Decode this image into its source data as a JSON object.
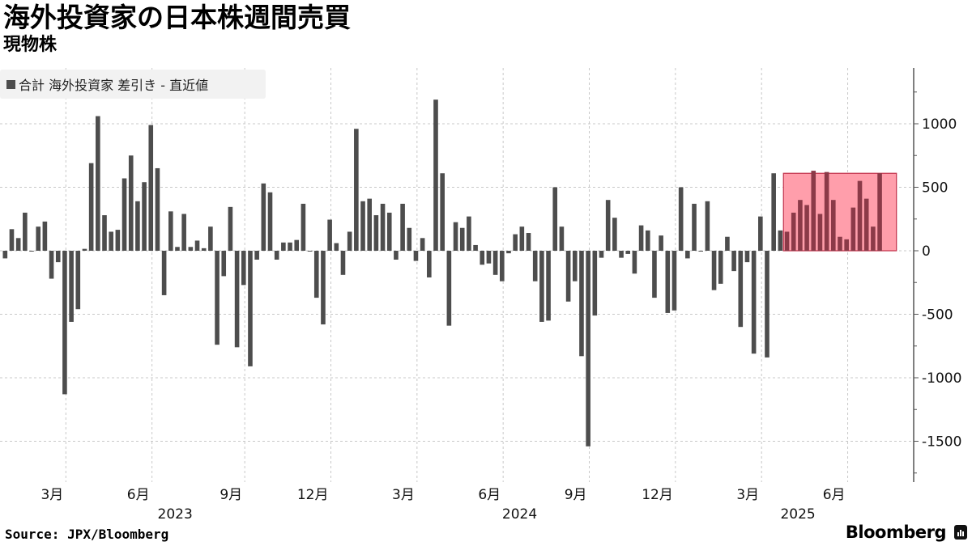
{
  "header": {
    "title": "海外投資家の日本株週間売買",
    "subtitle": "現物株"
  },
  "legend": {
    "label": "合計 海外投資家  差引き - 直近値",
    "swatch_color": "#4d4d4d"
  },
  "footer": {
    "source": "Source: JPX/Bloomberg",
    "logo": "Bloomberg"
  },
  "colors": {
    "bar": "#4d4d4d",
    "highlight_fill": "#ff9eab",
    "highlight_stroke": "#c0304a",
    "highlight_bar": "#8b3a48",
    "grid": "#c8c8c8",
    "axis": "#555555"
  },
  "chart_data": {
    "type": "bar",
    "title": "海外投資家の日本株週間売買",
    "subtitle": "現物株",
    "legend": [
      "合計 海外投資家  差引き - 直近値"
    ],
    "legend_position": "top-left",
    "xlabel": "",
    "ylabel": "",
    "ylim": [
      -1800,
      1450
    ],
    "yticks": [
      -1500,
      -1000,
      -500,
      0,
      500,
      1000
    ],
    "grid": true,
    "y_axis_side": "right",
    "x_tick_labels": [
      {
        "label": "3月",
        "index": 10
      },
      {
        "label": "6月",
        "index": 23
      },
      {
        "label": "9月",
        "index": 37
      },
      {
        "label": "12月",
        "index": 50
      },
      {
        "label": "3月",
        "index": 63
      },
      {
        "label": "6月",
        "index": 76
      },
      {
        "label": "9月",
        "index": 89
      },
      {
        "label": "12月",
        "index": 102
      },
      {
        "label": "3月",
        "index": 115
      },
      {
        "label": "6月",
        "index": 128
      }
    ],
    "x_year_labels": [
      {
        "label": "2023",
        "index": 26
      },
      {
        "label": "2024",
        "index": 78
      },
      {
        "label": "2025",
        "index": 120
      }
    ],
    "highlight": {
      "from_index": 118,
      "to_index": 135,
      "top_value": 610
    },
    "values": [
      -60,
      170,
      100,
      300,
      -5,
      190,
      230,
      -220,
      -90,
      -1130,
      -560,
      -460,
      15,
      690,
      1060,
      280,
      150,
      165,
      570,
      750,
      390,
      540,
      990,
      650,
      -350,
      310,
      30,
      290,
      30,
      80,
      20,
      190,
      -740,
      -200,
      345,
      -760,
      -270,
      -910,
      -70,
      530,
      460,
      -70,
      65,
      65,
      85,
      370,
      -5,
      -370,
      -580,
      245,
      60,
      -190,
      150,
      960,
      390,
      410,
      280,
      370,
      300,
      -70,
      370,
      180,
      -80,
      100,
      -210,
      1190,
      610,
      -590,
      225,
      180,
      270,
      45,
      -110,
      -100,
      -190,
      -240,
      -20,
      130,
      190,
      140,
      -240,
      -560,
      -550,
      500,
      190,
      -400,
      -240,
      -830,
      -1540,
      -510,
      -55,
      400,
      260,
      -55,
      -25,
      -180,
      200,
      160,
      -370,
      120,
      -490,
      -470,
      500,
      -60,
      370,
      -5,
      390,
      -310,
      -260,
      110,
      -160,
      -600,
      -90,
      -810,
      270,
      -840,
      610,
      160,
      150,
      300,
      400,
      360,
      630,
      290,
      620,
      400,
      110,
      90,
      340,
      550,
      410,
      190,
      610
    ]
  }
}
